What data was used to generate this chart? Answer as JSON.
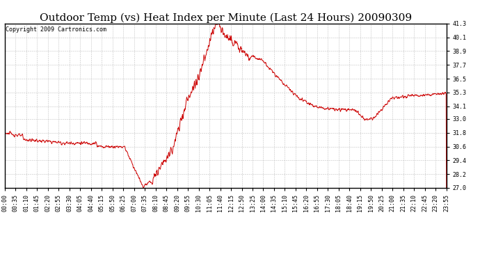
{
  "title": "Outdoor Temp (vs) Heat Index per Minute (Last 24 Hours) 20090309",
  "copyright": "Copyright 2009 Cartronics.com",
  "line_color": "#cc0000",
  "background_color": "#ffffff",
  "grid_color": "#bbbbbb",
  "y_ticks": [
    27.0,
    28.2,
    29.4,
    30.6,
    31.8,
    33.0,
    34.1,
    35.3,
    36.5,
    37.7,
    38.9,
    40.1,
    41.3
  ],
  "ylim": [
    27.0,
    41.3
  ],
  "title_fontsize": 11,
  "copyright_fontsize": 6,
  "tick_fontsize": 6,
  "x_labels": [
    "00:00",
    "00:35",
    "01:10",
    "01:45",
    "02:20",
    "02:55",
    "03:30",
    "04:05",
    "04:40",
    "05:15",
    "05:50",
    "06:25",
    "07:00",
    "07:35",
    "08:10",
    "08:45",
    "09:20",
    "09:55",
    "10:30",
    "11:05",
    "11:40",
    "12:15",
    "12:50",
    "13:25",
    "14:00",
    "14:35",
    "15:10",
    "15:45",
    "16:20",
    "16:55",
    "17:30",
    "18:05",
    "18:40",
    "19:15",
    "19:50",
    "20:25",
    "21:00",
    "21:35",
    "22:10",
    "22:45",
    "23:20",
    "23:55"
  ]
}
